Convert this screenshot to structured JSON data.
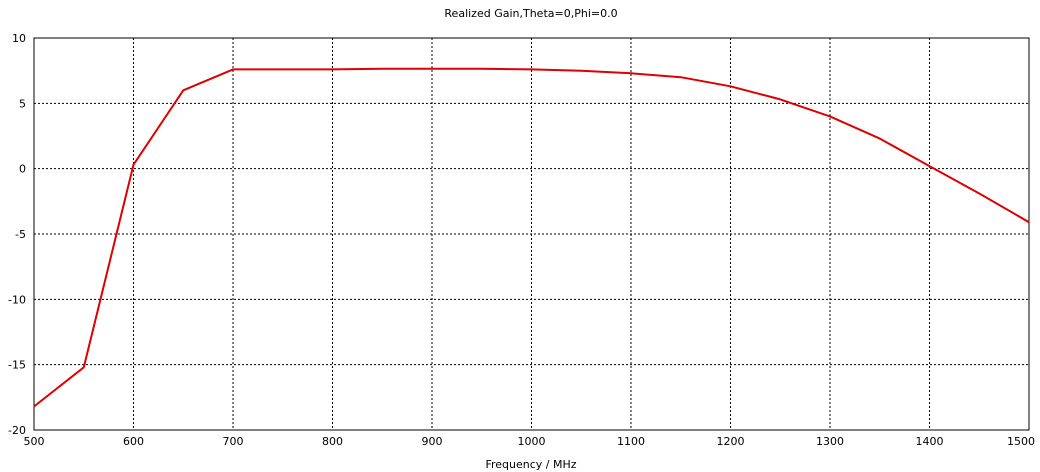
{
  "chart_data": {
    "type": "line",
    "title": "Realized Gain,Theta=0,Phi=0.0",
    "xlabel": "Frequency / MHz",
    "ylabel": "",
    "xlim": [
      500,
      1500
    ],
    "ylim": [
      -20,
      10
    ],
    "xticks": [
      "500",
      "600",
      "700",
      "800",
      "900",
      "1000",
      "1100",
      "1200",
      "1300",
      "1400",
      "1500"
    ],
    "yticks": [
      "10",
      "5",
      "0",
      "-5",
      "-10",
      "-15",
      "-20"
    ],
    "grid": true,
    "grid_style": "dashed",
    "series": [
      {
        "color": "#dd0000",
        "x": [
          500,
          550,
          600,
          650,
          700,
          750,
          800,
          850,
          900,
          950,
          1000,
          1050,
          1100,
          1150,
          1200,
          1250,
          1300,
          1350,
          1400,
          1450,
          1500
        ],
        "y": [
          -18.2,
          -15.2,
          0.3,
          6.0,
          7.6,
          7.6,
          7.6,
          7.65,
          7.65,
          7.65,
          7.6,
          7.5,
          7.3,
          7.0,
          6.3,
          5.3,
          4.0,
          2.3,
          0.2,
          -1.9,
          -4.1
        ]
      }
    ]
  }
}
